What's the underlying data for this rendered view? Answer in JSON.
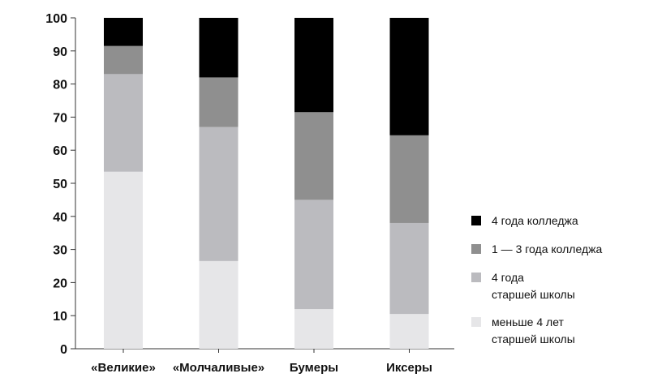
{
  "chart_data": {
    "type": "bar",
    "stacked": true,
    "categories": [
      "«Великие»",
      "«Молчаливые»",
      "Бумеры",
      "Иксеры"
    ],
    "series": [
      {
        "name": "меньше 4 лет\nстаршей школы",
        "color": "#e6e6e8",
        "values": [
          53.5,
          26.5,
          12,
          10.5
        ]
      },
      {
        "name": "4 года\nстаршей школы",
        "color": "#bbbbbf",
        "values": [
          29.5,
          40.5,
          33,
          27.5
        ]
      },
      {
        "name": "1 — 3 года колледжа",
        "color": "#8f8f8f",
        "values": [
          8.5,
          15,
          26.5,
          26.5
        ]
      },
      {
        "name": "4 года колледжа",
        "color": "#000000",
        "values": [
          8.5,
          18,
          28.5,
          35.5
        ]
      }
    ],
    "ylim": [
      0,
      100
    ],
    "yticks": [
      "0",
      "10",
      "20",
      "30",
      "40",
      "50",
      "60",
      "70",
      "80",
      "90",
      "100"
    ],
    "xlabel": "",
    "ylabel": "",
    "grid": false,
    "legend_position": "right"
  }
}
